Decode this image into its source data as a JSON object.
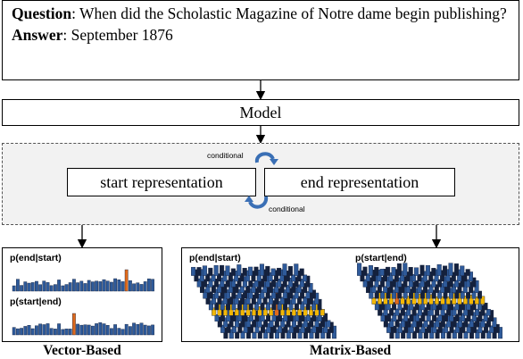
{
  "qa": {
    "question_label": "Question",
    "question_text": ": When did the Scholastic Magazine of Notre dame begin publishing?",
    "answer_label": "Answer",
    "answer_text": ": September 1876"
  },
  "model_label": "Model",
  "start_rep_label": "start representation",
  "end_rep_label": "end representation",
  "conditional_top": "conditional",
  "conditional_bottom": "conditional",
  "vector": {
    "label_end_start": "p(end|start)",
    "label_start_end": "p(start|end)",
    "caption": "Vector-Based"
  },
  "matrix": {
    "label_end_start": "p(end|start)",
    "label_start_end": "p(start|end)",
    "caption": "Matrix-Based"
  },
  "colors": {
    "bar_blue": "#2e5a9a",
    "bar_dark": "#14213d",
    "bar_orange": "#e06a1b",
    "bar_yellow": "#f2b705",
    "arrow_blue": "#3a6fb5"
  },
  "icons": [
    "circular-arrow-icon"
  ]
}
